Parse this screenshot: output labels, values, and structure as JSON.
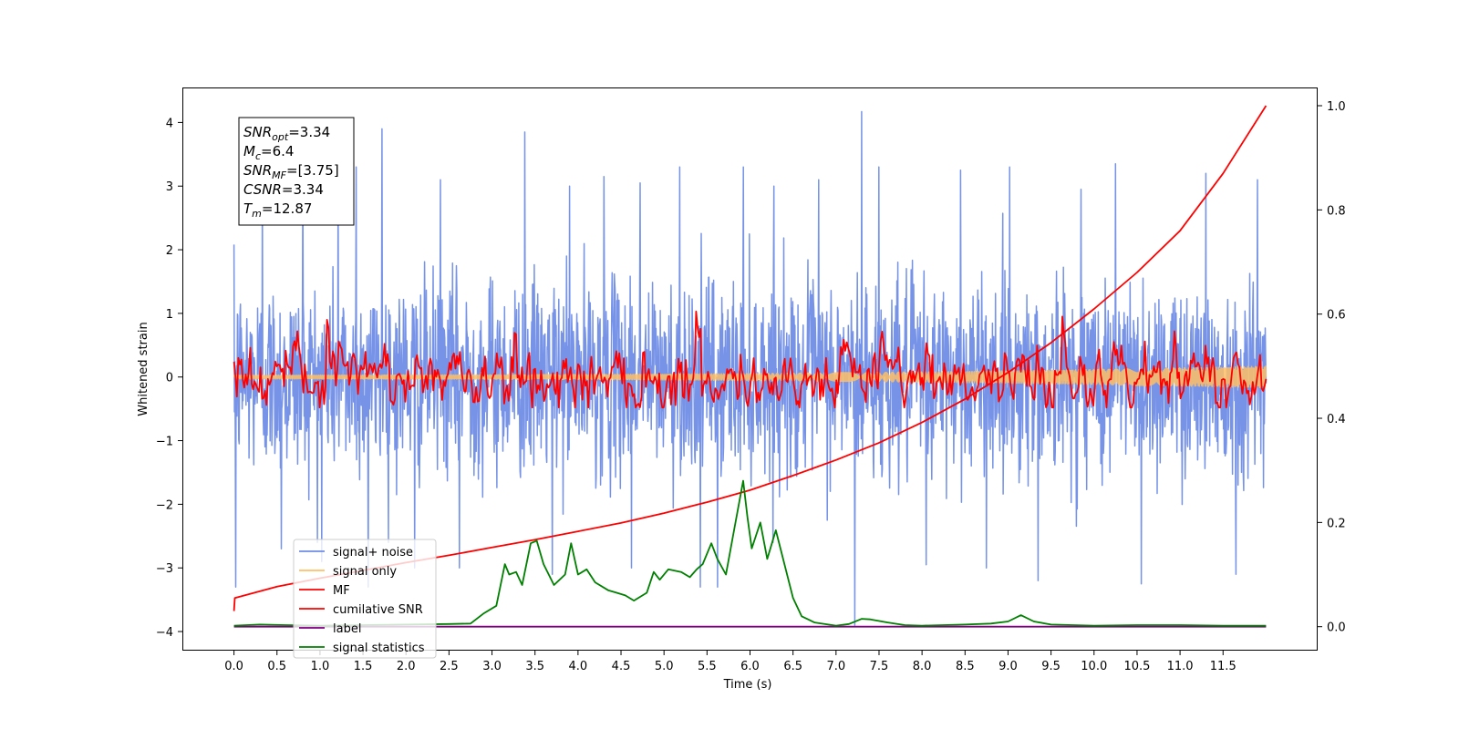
{
  "chart_data": {
    "type": "line",
    "title": "",
    "xlabel": "Time (s)",
    "ylabel": "Whitened strain",
    "xlim": [
      -0.6,
      12.6
    ],
    "ylim": [
      -4.3,
      4.55
    ],
    "y2lim": [
      -0.046,
      1.035
    ],
    "x_ticks": [
      0.0,
      0.5,
      1.0,
      1.5,
      2.0,
      2.5,
      3.0,
      3.5,
      4.0,
      4.5,
      5.0,
      5.5,
      6.0,
      6.5,
      7.0,
      7.5,
      8.0,
      8.5,
      9.0,
      9.5,
      10.0,
      10.5,
      11.0,
      11.5
    ],
    "x_tick_labels": [
      "0.0",
      "0.5",
      "1.0",
      "1.5",
      "2.0",
      "2.5",
      "3.0",
      "3.5",
      "4.0",
      "4.5",
      "5.0",
      "5.5",
      "6.0",
      "6.5",
      "7.0",
      "7.5",
      "8.0",
      "8.5",
      "9.0",
      "9.5",
      "10.0",
      "10.5",
      "11.0",
      "11.5"
    ],
    "y_ticks": [
      4,
      3,
      2,
      1,
      0,
      -1,
      -2,
      -3,
      -4
    ],
    "y_tick_labels": [
      "4",
      "3",
      "2",
      "1",
      "0",
      "−1",
      "−2",
      "−3",
      "−4"
    ],
    "y2_ticks": [
      1.0,
      0.8,
      0.6,
      0.4,
      0.2,
      0.0
    ],
    "y2_tick_labels": [
      "1.0",
      "0.8",
      "0.6",
      "0.4",
      "0.2",
      "0.0"
    ],
    "grid": false,
    "legend_position": "lower-left",
    "legend": [
      {
        "label": "signal+ noise",
        "color": "#6f8de6"
      },
      {
        "label": "signal only",
        "color": "#ffbf66"
      },
      {
        "label": "MF",
        "color": "#ff0000"
      },
      {
        "label": "cumilative SNR",
        "color": "#ff0000"
      },
      {
        "label": "label",
        "color": "#800080"
      },
      {
        "label": "signal statistics",
        "color": "#008000"
      }
    ],
    "annotation": [
      {
        "base": "SNR",
        "sub": "opt",
        "value": "=3.34"
      },
      {
        "base": "M",
        "sub": "c",
        "value": "=6.4"
      },
      {
        "base": "SNR",
        "sub": "MF",
        "value": "=[3.75]"
      },
      {
        "base": "CSNR",
        "sub": "",
        "value": "=3.34"
      },
      {
        "base": "T",
        "sub": "m",
        "value": "=12.87"
      }
    ],
    "series": [
      {
        "name": "signal+ noise",
        "axis": "left",
        "color": "#6f8de6",
        "x_range": [
          0.0,
          12.0
        ],
        "noise_std": 0.75,
        "spikes": [
          {
            "x": 0.02,
            "y": -3.3
          },
          {
            "x": 0.33,
            "y": 3.08
          },
          {
            "x": 0.55,
            "y": -2.7
          },
          {
            "x": 0.8,
            "y": 3.1
          },
          {
            "x": 1.02,
            "y": -2.9
          },
          {
            "x": 1.21,
            "y": 2.92
          },
          {
            "x": 1.42,
            "y": 3.3
          },
          {
            "x": 1.56,
            "y": -3.3
          },
          {
            "x": 1.72,
            "y": 3.9
          },
          {
            "x": 2.1,
            "y": -3.0
          },
          {
            "x": 2.4,
            "y": 3.1
          },
          {
            "x": 2.62,
            "y": -3.0
          },
          {
            "x": 3.38,
            "y": 3.85
          },
          {
            "x": 3.7,
            "y": -3.1
          },
          {
            "x": 3.9,
            "y": 3.0
          },
          {
            "x": 4.3,
            "y": 3.15
          },
          {
            "x": 4.62,
            "y": -3.0
          },
          {
            "x": 4.72,
            "y": 3.05
          },
          {
            "x": 5.18,
            "y": 3.3
          },
          {
            "x": 5.42,
            "y": -3.3
          },
          {
            "x": 5.62,
            "y": -3.3
          },
          {
            "x": 5.92,
            "y": 3.3
          },
          {
            "x": 6.28,
            "y": 3.0
          },
          {
            "x": 6.8,
            "y": 3.1
          },
          {
            "x": 7.22,
            "y": -3.9
          },
          {
            "x": 7.3,
            "y": 4.17
          },
          {
            "x": 7.5,
            "y": 3.3
          },
          {
            "x": 8.05,
            "y": -2.95
          },
          {
            "x": 8.45,
            "y": 3.25
          },
          {
            "x": 8.75,
            "y": -3.0
          },
          {
            "x": 9.02,
            "y": 3.3
          },
          {
            "x": 9.35,
            "y": -3.2
          },
          {
            "x": 9.85,
            "y": 2.95
          },
          {
            "x": 10.25,
            "y": 3.35
          },
          {
            "x": 10.55,
            "y": -3.25
          },
          {
            "x": 11.3,
            "y": 3.2
          },
          {
            "x": 11.65,
            "y": -3.1
          },
          {
            "x": 11.9,
            "y": 3.1
          }
        ]
      },
      {
        "name": "signal only",
        "axis": "left",
        "color": "#ffbf66",
        "x_range": [
          0.0,
          12.0
        ],
        "amplitude_start": 0.03,
        "amplitude_end": 0.17
      },
      {
        "name": "MF",
        "axis": "left",
        "color": "#ff0000",
        "x_range": [
          0.0,
          12.0
        ],
        "noise_std": 0.22,
        "points": [
          [
            0.0,
            0.24
          ],
          [
            0.05,
            0.3
          ],
          [
            1.08,
            0.9
          ],
          [
            5.38,
            1.03
          ],
          [
            9.63,
            0.95
          ]
        ]
      },
      {
        "name": "cumilative SNR",
        "axis": "right",
        "color": "#ff0000",
        "x": [
          0.0,
          0.01,
          0.5,
          1.0,
          1.5,
          2.0,
          2.5,
          3.0,
          3.5,
          4.0,
          4.5,
          5.0,
          5.5,
          6.0,
          6.5,
          7.0,
          7.5,
          8.0,
          8.5,
          9.0,
          9.5,
          10.0,
          10.5,
          11.0,
          11.5,
          12.0
        ],
        "y": [
          0.03,
          0.055,
          0.077,
          0.093,
          0.108,
          0.123,
          0.137,
          0.152,
          0.167,
          0.183,
          0.199,
          0.218,
          0.239,
          0.262,
          0.29,
          0.32,
          0.353,
          0.392,
          0.437,
          0.488,
          0.545,
          0.61,
          0.68,
          0.76,
          0.87,
          1.0
        ]
      },
      {
        "name": "label",
        "axis": "right",
        "color": "#800080",
        "x": [
          0.0,
          12.0
        ],
        "y": [
          0.0,
          0.0
        ]
      },
      {
        "name": "signal statistics",
        "axis": "right",
        "color": "#008000",
        "x": [
          0.0,
          0.3,
          0.6,
          1.0,
          1.5,
          2.0,
          2.5,
          2.75,
          2.9,
          3.05,
          3.15,
          3.2,
          3.28,
          3.35,
          3.45,
          3.52,
          3.6,
          3.72,
          3.85,
          3.92,
          4.0,
          4.1,
          4.2,
          4.35,
          4.45,
          4.55,
          4.65,
          4.8,
          4.88,
          4.95,
          5.05,
          5.2,
          5.3,
          5.38,
          5.45,
          5.55,
          5.62,
          5.72,
          5.82,
          5.92,
          5.97,
          6.02,
          6.12,
          6.2,
          6.3,
          6.5,
          6.6,
          6.75,
          7.0,
          7.15,
          7.3,
          7.4,
          7.6,
          7.8,
          8.0,
          8.5,
          8.8,
          9.0,
          9.15,
          9.3,
          9.5,
          10.0,
          10.5,
          11.0,
          11.5,
          12.0
        ],
        "y": [
          0.002,
          0.004,
          0.003,
          0.002,
          0.003,
          0.004,
          0.005,
          0.006,
          0.025,
          0.04,
          0.12,
          0.1,
          0.105,
          0.08,
          0.16,
          0.165,
          0.12,
          0.08,
          0.1,
          0.16,
          0.1,
          0.11,
          0.085,
          0.07,
          0.065,
          0.06,
          0.05,
          0.065,
          0.105,
          0.09,
          0.11,
          0.105,
          0.095,
          0.11,
          0.12,
          0.16,
          0.13,
          0.1,
          0.19,
          0.28,
          0.21,
          0.15,
          0.2,
          0.13,
          0.185,
          0.055,
          0.02,
          0.008,
          0.002,
          0.005,
          0.015,
          0.014,
          0.008,
          0.003,
          0.002,
          0.004,
          0.006,
          0.01,
          0.022,
          0.01,
          0.004,
          0.002,
          0.003,
          0.003,
          0.002,
          0.002
        ]
      }
    ]
  }
}
